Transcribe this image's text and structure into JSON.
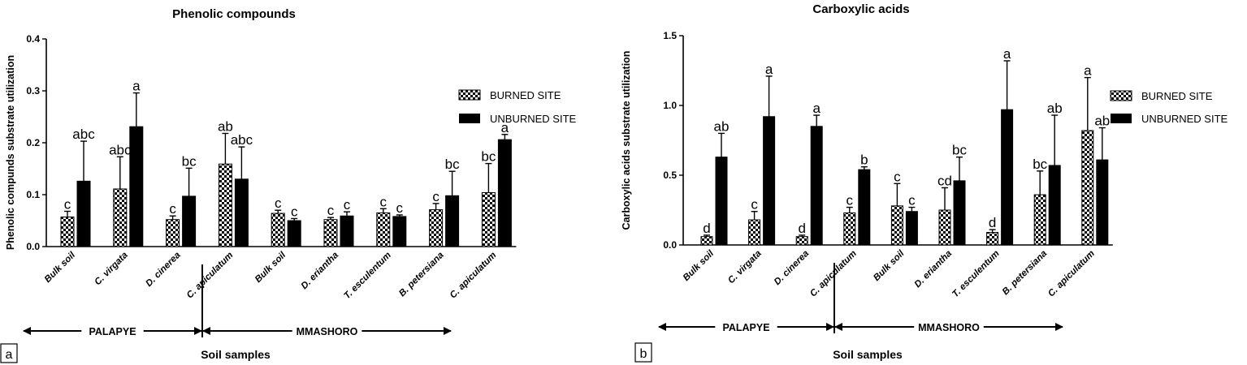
{
  "legend_labels": {
    "burned": "BURNED SITE",
    "unburned": "UNBURNED SITE"
  },
  "chart_data": [
    {
      "type": "bar",
      "panel_label": "a",
      "title": "Phenolic compounds",
      "ylabel": "Phenolic compunds substrate utilization",
      "xlabel": "Soil samples",
      "ylim": [
        0,
        0.4
      ],
      "yticks": [
        "0.0",
        "0.1",
        "0.2",
        "0.3",
        "0.4"
      ],
      "categories": [
        "Bulk soil",
        "C. virgata",
        "D. cinerea",
        "C. apiculatum",
        "Bulk soil",
        "D. eriantha",
        "T. esculentum",
        "B. petersiana",
        "C. apiculatum"
      ],
      "groups": [
        {
          "label": "PALAPYE",
          "from": 0,
          "to": 3
        },
        {
          "label": "MMASHORO",
          "from": 4,
          "to": 8
        }
      ],
      "series": [
        {
          "name": "BURNED SITE",
          "values": [
            0.057,
            0.111,
            0.052,
            0.159,
            0.064,
            0.052,
            0.065,
            0.071,
            0.104
          ],
          "errors": [
            0.011,
            0.062,
            0.007,
            0.059,
            0.006,
            0.004,
            0.008,
            0.012,
            0.056
          ],
          "labels": [
            "c",
            "abc",
            "c",
            "ab",
            "c",
            "c",
            "c",
            "c",
            "bc"
          ]
        },
        {
          "name": "UNBURNED SITE",
          "values": [
            0.126,
            0.231,
            0.097,
            0.13,
            0.05,
            0.059,
            0.058,
            0.098,
            0.206
          ],
          "errors": [
            0.077,
            0.065,
            0.054,
            0.062,
            0.004,
            0.008,
            0.003,
            0.047,
            0.01
          ],
          "labels": [
            "abc",
            "a",
            "bc",
            "abc",
            "c",
            "c",
            "c",
            "bc",
            "a"
          ]
        }
      ]
    },
    {
      "type": "bar",
      "panel_label": "b",
      "title": "Carboxylic acids",
      "ylabel": "Carboxylic acids substrate utilization",
      "xlabel": "Soil samples",
      "ylim": [
        0,
        1.5
      ],
      "yticks": [
        "0.0",
        "0.5",
        "1.0",
        "1.5"
      ],
      "categories": [
        "Bulk soil",
        "C. virgata",
        "D. cinerea",
        "C. apiculatum",
        "Bulk soil",
        "D. eriantha",
        "T. esculentum",
        "B. petersiana",
        "C. apiculatum"
      ],
      "groups": [
        {
          "label": "PALAPYE",
          "from": 0,
          "to": 3
        },
        {
          "label": "MMASHORO",
          "from": 4,
          "to": 8
        }
      ],
      "series": [
        {
          "name": "BURNED SITE",
          "values": [
            0.06,
            0.18,
            0.06,
            0.23,
            0.28,
            0.25,
            0.09,
            0.36,
            0.82
          ],
          "errors": [
            0.01,
            0.06,
            0.01,
            0.04,
            0.16,
            0.16,
            0.02,
            0.17,
            0.38
          ],
          "labels": [
            "d",
            "c",
            "d",
            "c",
            "c",
            "cd",
            "d",
            "bc",
            "a"
          ]
        },
        {
          "name": "UNBURNED SITE",
          "values": [
            0.63,
            0.92,
            0.85,
            0.54,
            0.24,
            0.46,
            0.97,
            0.57,
            0.61
          ],
          "errors": [
            0.17,
            0.29,
            0.08,
            0.02,
            0.03,
            0.17,
            0.35,
            0.36,
            0.23
          ],
          "labels": [
            "ab",
            "a",
            "a",
            "b",
            "c",
            "bc",
            "a",
            "ab",
            "ab"
          ]
        }
      ]
    }
  ]
}
